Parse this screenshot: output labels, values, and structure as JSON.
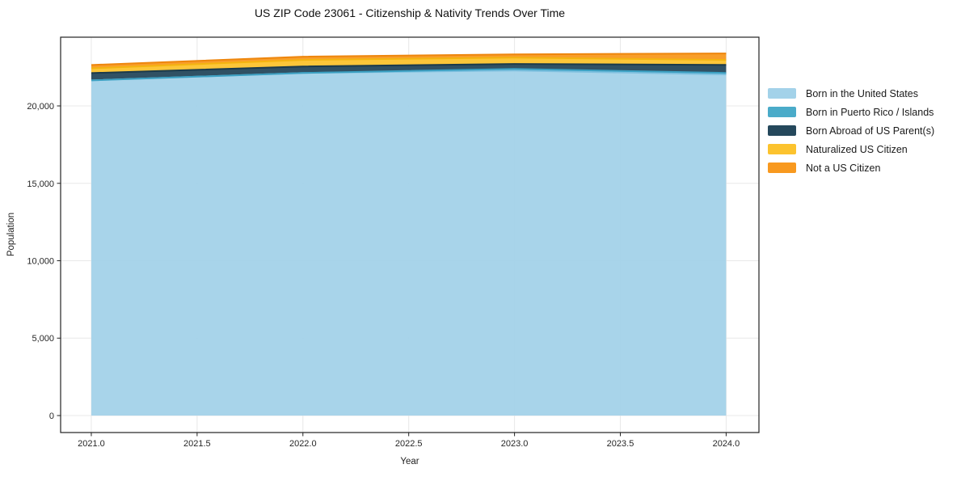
{
  "title": "US ZIP Code 23061 - Citizenship & Nativity Trends Over Time",
  "chart_data": {
    "type": "area",
    "stacked": true,
    "title": "US ZIP Code 23061 - Citizenship & Nativity Trends Over Time",
    "xlabel": "Year",
    "ylabel": "Population",
    "x": [
      2021,
      2022,
      2023,
      2024
    ],
    "series": [
      {
        "name": "Born in the United States",
        "color": "#a3d2e9",
        "edge_color": "#7ec0df",
        "values": [
          21650,
          22130,
          22290,
          22030
        ]
      },
      {
        "name": "Born in Puerto Rico / Islands",
        "color": "#4aabc9",
        "edge_color": "#3ba0c2",
        "values": [
          0,
          0,
          100,
          100
        ]
      },
      {
        "name": "Born Abroad of US Parent(s)",
        "color": "#25485c",
        "edge_color": "#1b3a4b",
        "values": [
          470,
          420,
          320,
          520
        ]
      },
      {
        "name": "Naturalized US Citizen",
        "color": "#fcc32e",
        "edge_color": "#f4b410",
        "values": [
          310,
          420,
          410,
          320
        ]
      },
      {
        "name": "Not a US Citizen",
        "color": "#f8991f",
        "edge_color": "#ee860d",
        "values": [
          210,
          210,
          210,
          420
        ]
      }
    ],
    "totals": [
      22640,
      23180,
      23330,
      23390
    ],
    "xlim": [
      2020.855,
      2024.155
    ],
    "ylim": [
      -1097,
      24439
    ],
    "x_ticks": [
      2021.0,
      2021.5,
      2022.0,
      2022.5,
      2023.0,
      2023.5,
      2024.0
    ],
    "x_tick_labels": [
      "2021.0",
      "2021.5",
      "2022.0",
      "2022.5",
      "2023.0",
      "2023.5",
      "2024.0"
    ],
    "y_ticks": [
      0,
      5000,
      10000,
      15000,
      20000
    ],
    "y_tick_labels": [
      "0",
      "5,000",
      "10,000",
      "15,000",
      "20,000"
    ],
    "grid": true,
    "grid_color": "#e8e8e8",
    "spine_color": "#222222",
    "tick_label_color": "#262626",
    "legend_position": "right"
  }
}
